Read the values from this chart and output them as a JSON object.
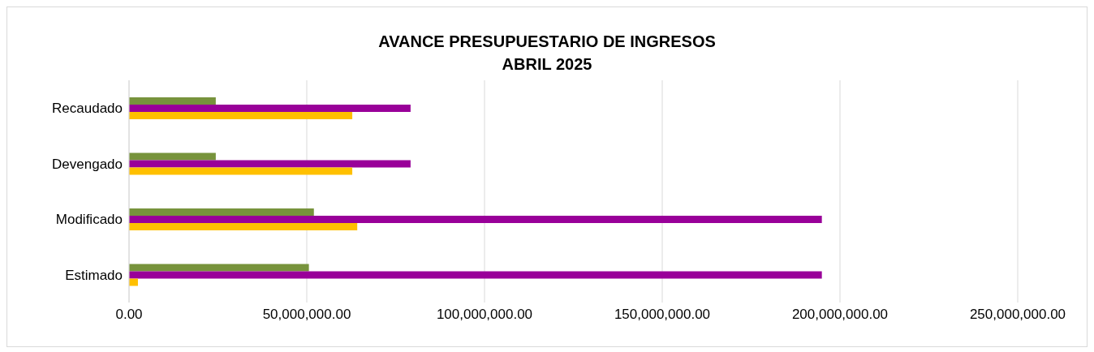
{
  "chart_data": {
    "type": "bar",
    "orientation": "horizontal",
    "title": "AVANCE PRESUPUESTARIO DE INGRESOS",
    "subtitle": "ABRIL 2025",
    "categories": [
      "Recaudado",
      "Devengado",
      "Modificado",
      "Estimado"
    ],
    "series": [
      {
        "color": "#77933c",
        "values": [
          24400000,
          24400000,
          52000000,
          50600000
        ]
      },
      {
        "color": "#990099",
        "values": [
          79200000,
          79200000,
          194900000,
          194900000
        ]
      },
      {
        "color": "#ffc000",
        "values": [
          62800000,
          62800000,
          64200000,
          2500000
        ]
      }
    ],
    "xlim": [
      0,
      250000000
    ],
    "xticks": [
      {
        "value": 0,
        "label": "0.00"
      },
      {
        "value": 50000000,
        "label": "50,000,000.00"
      },
      {
        "value": 100000000,
        "label": "100,000,000.00"
      },
      {
        "value": 150000000,
        "label": "150,000,000.00"
      },
      {
        "value": 200000000,
        "label": "200,000,000.00"
      },
      {
        "value": 250000000,
        "label": "250,000,000.00"
      }
    ],
    "grid": "x",
    "legend": false
  }
}
